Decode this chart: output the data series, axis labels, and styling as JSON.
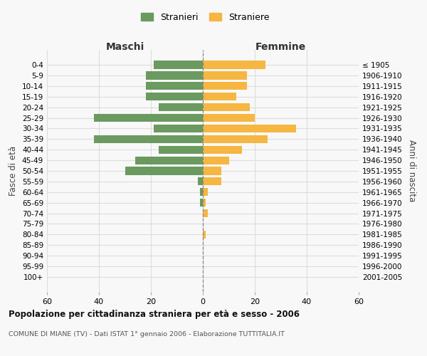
{
  "age_groups": [
    "0-4",
    "5-9",
    "10-14",
    "15-19",
    "20-24",
    "25-29",
    "30-34",
    "35-39",
    "40-44",
    "45-49",
    "50-54",
    "55-59",
    "60-64",
    "65-69",
    "70-74",
    "75-79",
    "80-84",
    "85-89",
    "90-94",
    "95-99",
    "100+"
  ],
  "birth_years": [
    "2001-2005",
    "1996-2000",
    "1991-1995",
    "1986-1990",
    "1981-1985",
    "1976-1980",
    "1971-1975",
    "1966-1970",
    "1961-1965",
    "1956-1960",
    "1951-1955",
    "1946-1950",
    "1941-1945",
    "1936-1940",
    "1931-1935",
    "1926-1930",
    "1921-1925",
    "1916-1920",
    "1911-1915",
    "1906-1910",
    "≤ 1905"
  ],
  "maschi": [
    19,
    22,
    22,
    22,
    17,
    42,
    19,
    42,
    17,
    26,
    30,
    2,
    1,
    1,
    0,
    0,
    0,
    0,
    0,
    0,
    0
  ],
  "femmine": [
    24,
    17,
    17,
    13,
    18,
    20,
    36,
    25,
    15,
    10,
    7,
    7,
    2,
    1,
    2,
    0,
    1,
    0,
    0,
    0,
    0
  ],
  "color_maschi": "#6a9a5f",
  "color_femmine": "#f5b642",
  "xlim": 60,
  "title": "Popolazione per cittadinanza straniera per età e sesso - 2006",
  "subtitle": "COMUNE DI MIANE (TV) - Dati ISTAT 1° gennaio 2006 - Elaborazione TUTTITALIA.IT",
  "xlabel_left": "Maschi",
  "xlabel_right": "Femmine",
  "ylabel_left": "Fasce di età",
  "ylabel_right": "Anni di nascita",
  "legend_maschi": "Stranieri",
  "legend_femmine": "Straniere",
  "background_color": "#f8f8f8",
  "grid_color": "#dddddd",
  "bar_height": 0.75
}
